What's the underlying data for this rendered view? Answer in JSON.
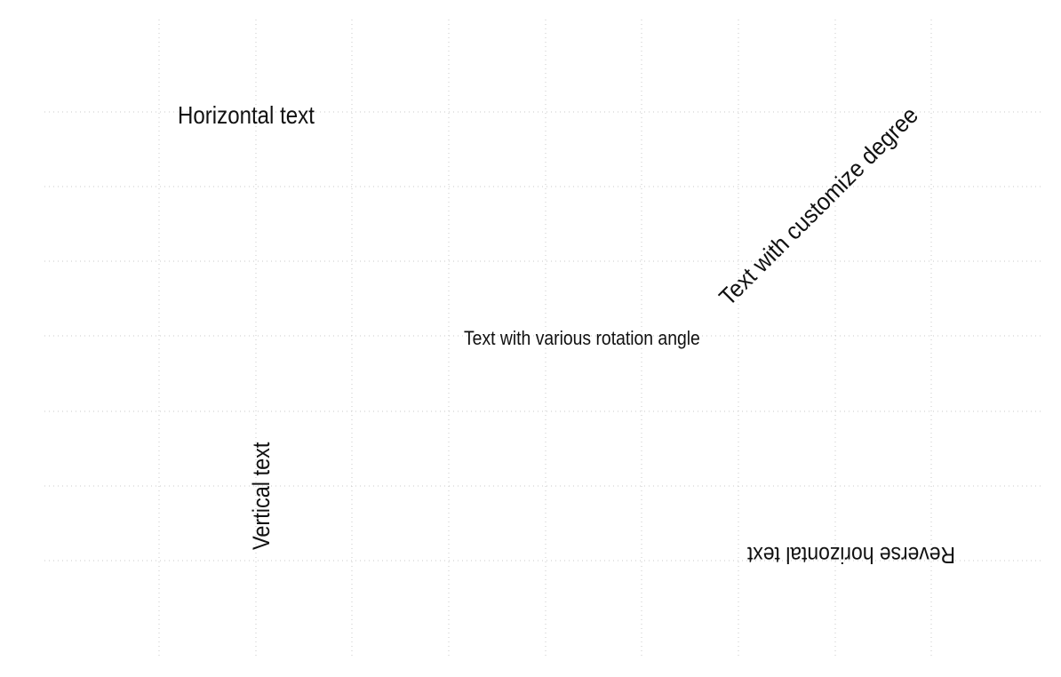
{
  "labels": {
    "horizontal": "Horizontal text",
    "diagonal": "Text with customize degree",
    "various": "Text with various rotation angle",
    "vertical": "Vertical text",
    "reverse": "Reverse horizontal text"
  },
  "colors": {
    "text": "#111111",
    "grid": "#c8c8c8",
    "background": "#ffffff"
  }
}
